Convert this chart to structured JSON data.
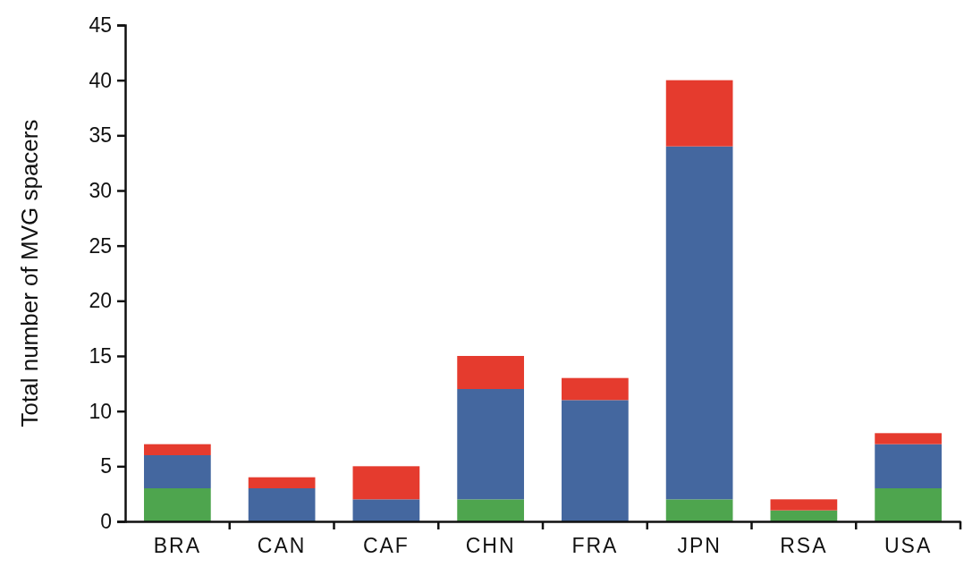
{
  "chart_data": {
    "type": "bar",
    "stacked": true,
    "ylabel": "Total number of MVG spacers",
    "categories": [
      "BRA",
      "CAN",
      "CAF",
      "CHN",
      "FRA",
      "JPN",
      "RSA",
      "USA"
    ],
    "series": [
      {
        "color": "#4ea54e",
        "values": [
          3,
          0,
          0,
          2,
          0,
          2,
          1,
          3
        ]
      },
      {
        "color": "#44679f",
        "values": [
          3,
          3,
          2,
          10,
          11,
          32,
          0,
          4
        ]
      },
      {
        "color": "#e53b2e",
        "values": [
          1,
          1,
          3,
          3,
          2,
          6,
          1,
          1
        ]
      }
    ],
    "ylim": [
      0,
      45
    ],
    "yticks": [
      0,
      5,
      10,
      15,
      20,
      25,
      30,
      35,
      40,
      45
    ],
    "grid": false
  }
}
